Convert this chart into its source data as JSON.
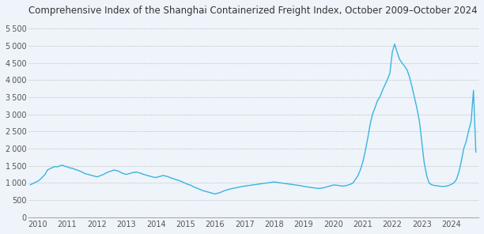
{
  "title": "Comprehensive Index of the Shanghai Containerized Freight Index, October 2009–October 2024",
  "title_fontsize": 8.5,
  "line_color": "#3ab4e0",
  "background_color": "#eef4fa",
  "plot_bg_color": "#eef4fa",
  "ylim": [
    0,
    5750
  ],
  "yticks": [
    0,
    500,
    1000,
    1500,
    2000,
    2500,
    3000,
    3500,
    4000,
    4500,
    5000,
    5500
  ],
  "ytick_labels": [
    "0",
    "500",
    "1 000",
    "1 500",
    "2 000",
    "2 500",
    "3 000",
    "3 500",
    "4 000",
    "4 500",
    "5 000",
    "5 500"
  ],
  "xtick_years": [
    2010,
    2011,
    2012,
    2013,
    2014,
    2015,
    2016,
    2017,
    2018,
    2019,
    2020,
    2021,
    2022,
    2023,
    2024
  ],
  "series": {
    "dates_float": [
      2009.75,
      2009.83,
      2009.92,
      2010.0,
      2010.08,
      2010.17,
      2010.25,
      2010.33,
      2010.42,
      2010.5,
      2010.58,
      2010.67,
      2010.75,
      2010.83,
      2010.92,
      2011.0,
      2011.08,
      2011.17,
      2011.25,
      2011.33,
      2011.42,
      2011.5,
      2011.58,
      2011.67,
      2011.75,
      2011.83,
      2011.92,
      2012.0,
      2012.08,
      2012.17,
      2012.25,
      2012.33,
      2012.42,
      2012.5,
      2012.58,
      2012.67,
      2012.75,
      2012.83,
      2012.92,
      2013.0,
      2013.08,
      2013.17,
      2013.25,
      2013.33,
      2013.42,
      2013.5,
      2013.58,
      2013.67,
      2013.75,
      2013.83,
      2013.92,
      2014.0,
      2014.08,
      2014.17,
      2014.25,
      2014.33,
      2014.42,
      2014.5,
      2014.58,
      2014.67,
      2014.75,
      2014.83,
      2014.92,
      2015.0,
      2015.08,
      2015.17,
      2015.25,
      2015.33,
      2015.42,
      2015.5,
      2015.58,
      2015.67,
      2015.75,
      2015.83,
      2015.92,
      2016.0,
      2016.08,
      2016.17,
      2016.25,
      2016.33,
      2016.42,
      2016.5,
      2016.58,
      2016.67,
      2016.75,
      2016.83,
      2016.92,
      2017.0,
      2017.08,
      2017.17,
      2017.25,
      2017.33,
      2017.42,
      2017.5,
      2017.58,
      2017.67,
      2017.75,
      2017.83,
      2017.92,
      2018.0,
      2018.08,
      2018.17,
      2018.25,
      2018.33,
      2018.42,
      2018.5,
      2018.58,
      2018.67,
      2018.75,
      2018.83,
      2018.92,
      2019.0,
      2019.08,
      2019.17,
      2019.25,
      2019.33,
      2019.42,
      2019.5,
      2019.58,
      2019.67,
      2019.75,
      2019.83,
      2019.92,
      2020.0,
      2020.08,
      2020.17,
      2020.25,
      2020.33,
      2020.42,
      2020.5,
      2020.58,
      2020.67,
      2020.75,
      2020.83,
      2020.92,
      2021.0,
      2021.08,
      2021.17,
      2021.25,
      2021.33,
      2021.42,
      2021.5,
      2021.58,
      2021.67,
      2021.75,
      2021.83,
      2021.92,
      2022.0,
      2022.08,
      2022.17,
      2022.25,
      2022.33,
      2022.42,
      2022.5,
      2022.58,
      2022.67,
      2022.75,
      2022.83,
      2022.92,
      2023.0,
      2023.08,
      2023.17,
      2023.25,
      2023.33,
      2023.42,
      2023.5,
      2023.58,
      2023.67,
      2023.75,
      2023.83,
      2023.92,
      2024.0,
      2024.08,
      2024.17,
      2024.25,
      2024.33,
      2024.42,
      2024.5,
      2024.58,
      2024.67,
      2024.75,
      2024.83
    ],
    "values": [
      950,
      980,
      1020,
      1050,
      1100,
      1180,
      1250,
      1380,
      1420,
      1450,
      1480,
      1470,
      1500,
      1520,
      1490,
      1470,
      1440,
      1430,
      1400,
      1380,
      1350,
      1320,
      1280,
      1260,
      1240,
      1220,
      1200,
      1180,
      1200,
      1230,
      1260,
      1300,
      1330,
      1350,
      1380,
      1360,
      1340,
      1300,
      1270,
      1250,
      1270,
      1290,
      1310,
      1320,
      1300,
      1280,
      1250,
      1230,
      1210,
      1190,
      1170,
      1160,
      1180,
      1200,
      1220,
      1200,
      1180,
      1150,
      1130,
      1100,
      1080,
      1060,
      1020,
      990,
      960,
      940,
      900,
      870,
      840,
      810,
      780,
      760,
      740,
      720,
      700,
      680,
      700,
      720,
      750,
      780,
      800,
      820,
      840,
      850,
      870,
      880,
      900,
      910,
      920,
      930,
      940,
      950,
      960,
      970,
      980,
      990,
      1000,
      1010,
      1020,
      1030,
      1020,
      1010,
      1000,
      990,
      980,
      970,
      960,
      950,
      940,
      930,
      920,
      900,
      890,
      880,
      870,
      860,
      850,
      840,
      850,
      860,
      880,
      900,
      920,
      940,
      940,
      930,
      920,
      910,
      920,
      940,
      960,
      1000,
      1100,
      1200,
      1380,
      1600,
      1900,
      2300,
      2700,
      3000,
      3200,
      3400,
      3500,
      3700,
      3850,
      4000,
      4200,
      4800,
      5050,
      4800,
      4600,
      4500,
      4400,
      4300,
      4100,
      3800,
      3500,
      3200,
      2800,
      2200,
      1600,
      1200,
      1000,
      950,
      930,
      920,
      910,
      900,
      900,
      910,
      930,
      960,
      1000,
      1100,
      1300,
      1600,
      2000,
      2200,
      2500,
      2800,
      3700,
      1900
    ]
  }
}
